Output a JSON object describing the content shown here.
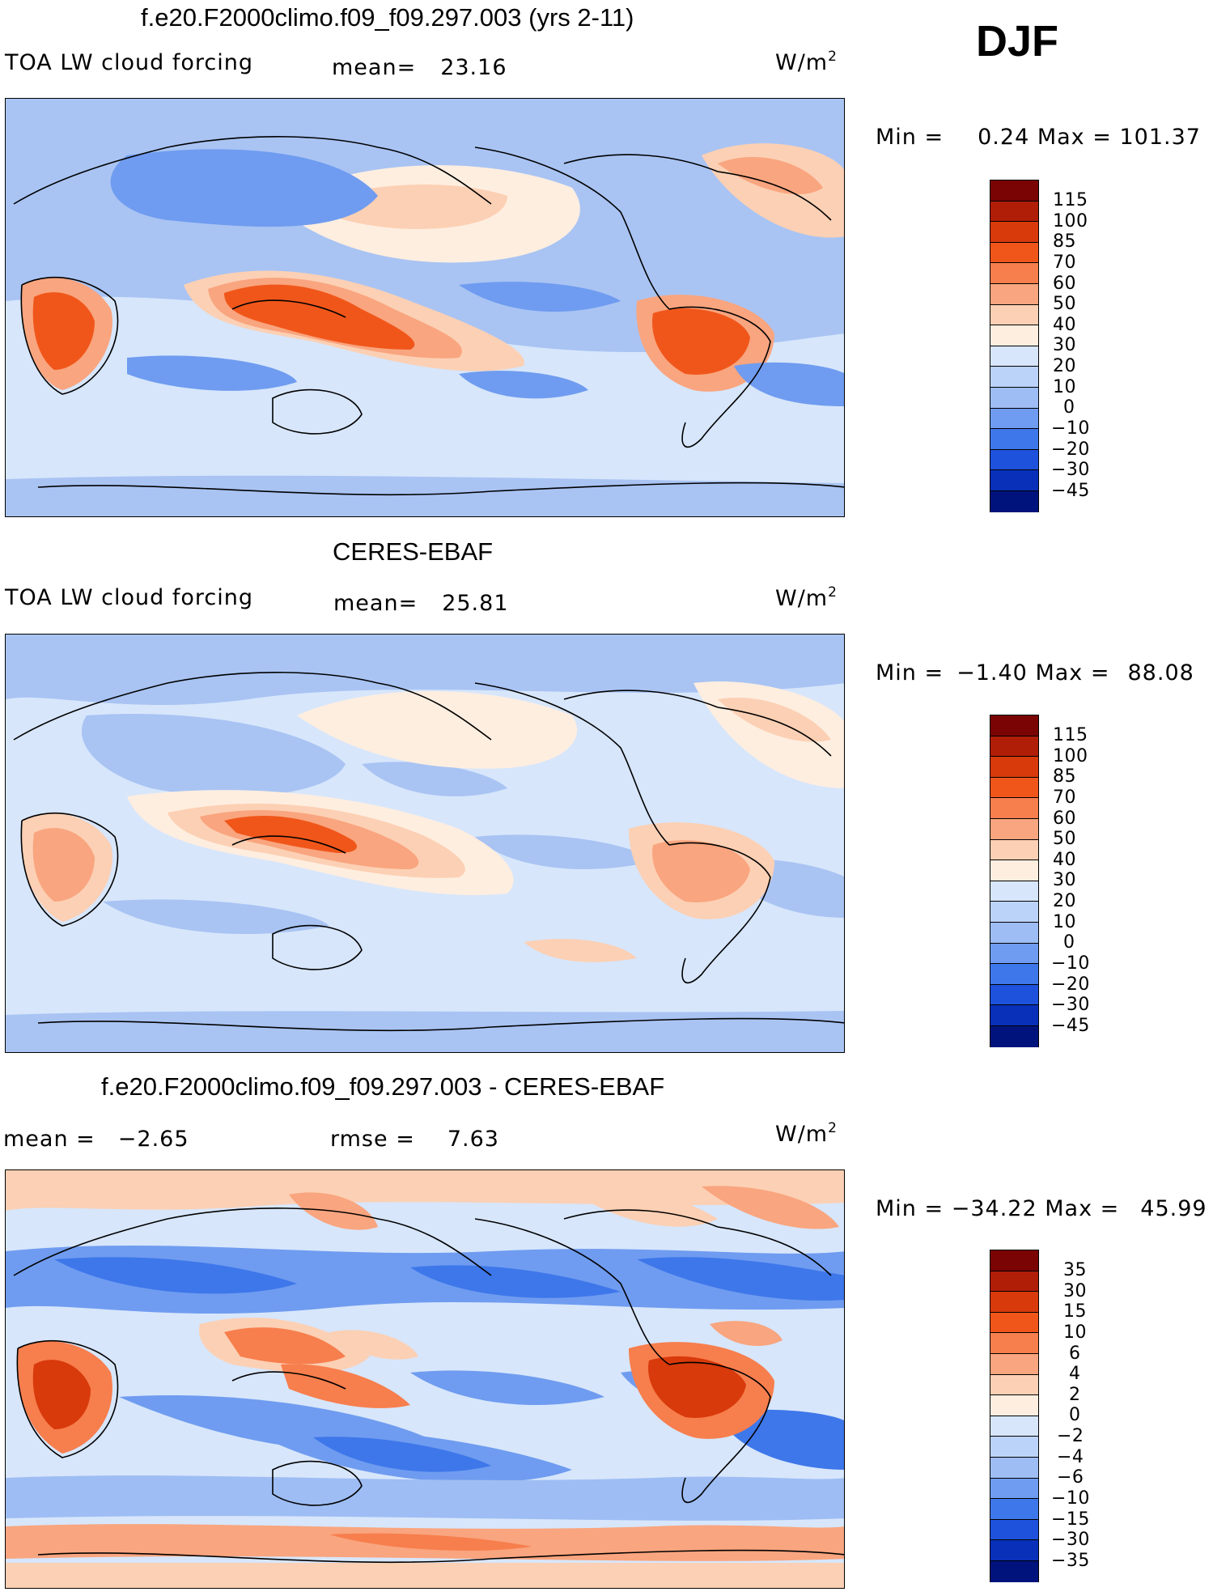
{
  "season": "DJF",
  "chart_data": [
    {
      "type": "heatmap",
      "title": "f.e20.F2000climo.f09_f09.297.003 (yrs 2-11)",
      "variable": "TOA LW cloud forcing",
      "mean_label": "mean=",
      "mean": "23.16",
      "units_base": "W/m",
      "units_exp": "2",
      "min_label": "Min =",
      "min": "0.24",
      "max_label": "Max =",
      "max": "101.37",
      "levels": [
        "115",
        "100",
        "85",
        "70",
        "60",
        "50",
        "40",
        "30",
        "20",
        "10",
        "0",
        "−10",
        "−20",
        "−30",
        "−45"
      ],
      "colors": [
        "#7a0403",
        "#b01e07",
        "#d83a0b",
        "#f0561a",
        "#f77e4d",
        "#f9a57f",
        "#fcd0b4",
        "#feeee0",
        "#d7e6fb",
        "#bcd3f9",
        "#9ebdf4",
        "#6f9cf0",
        "#3e77ea",
        "#1e52dc",
        "#0830b8",
        "#00137c"
      ]
    },
    {
      "type": "heatmap",
      "title": "CERES-EBAF",
      "variable": "TOA LW cloud forcing",
      "mean_label": "mean=",
      "mean": "25.81",
      "units_base": "W/m",
      "units_exp": "2",
      "min_label": "Min =",
      "min": "−1.40",
      "max_label": "Max =",
      "max": "88.08",
      "levels": [
        "115",
        "100",
        "85",
        "70",
        "60",
        "50",
        "40",
        "30",
        "20",
        "10",
        "0",
        "−10",
        "−20",
        "−30",
        "−45"
      ],
      "colors": [
        "#7a0403",
        "#b01e07",
        "#d83a0b",
        "#f0561a",
        "#f77e4d",
        "#f9a57f",
        "#fcd0b4",
        "#feeee0",
        "#d7e6fb",
        "#bcd3f9",
        "#9ebdf4",
        "#6f9cf0",
        "#3e77ea",
        "#1e52dc",
        "#0830b8",
        "#00137c"
      ]
    },
    {
      "type": "heatmap",
      "title": "f.e20.F2000climo.f09_f09.297.003 - CERES-EBAF",
      "mean_label": "mean =",
      "mean": "−2.65",
      "rmse_label": "rmse =",
      "rmse": "7.63",
      "units_base": "W/m",
      "units_exp": "2",
      "min_label": "Min =",
      "min": "−34.22",
      "max_label": "Max =",
      "max": "45.99",
      "levels": [
        "35",
        "30",
        "15",
        "10",
        "6",
        "4",
        "2",
        "0",
        "−2",
        "−4",
        "−6",
        "−10",
        "−15",
        "−30",
        "−35"
      ],
      "colors": [
        "#7a0403",
        "#b01e07",
        "#d83a0b",
        "#f0561a",
        "#f77e4d",
        "#f9a57f",
        "#fcd0b4",
        "#feeee0",
        "#d7e6fb",
        "#bcd3f9",
        "#9ebdf4",
        "#6f9cf0",
        "#3e77ea",
        "#1e52dc",
        "#0830b8",
        "#00137c"
      ]
    }
  ]
}
